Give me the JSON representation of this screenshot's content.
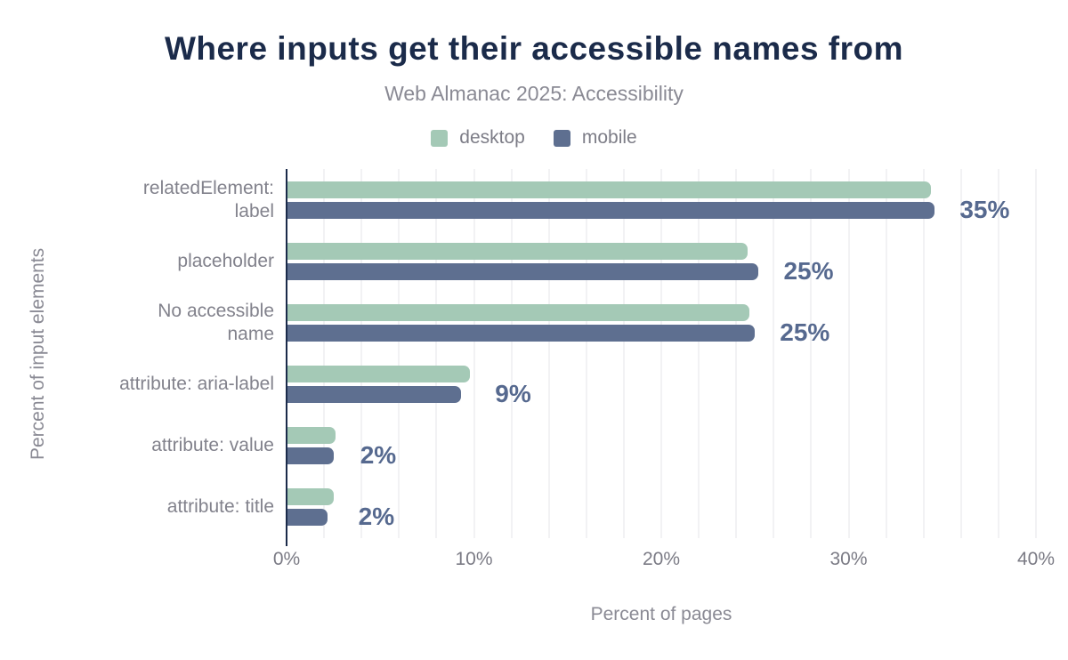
{
  "header": {
    "title": "Where inputs get their accessible names from",
    "subtitle": "Web Almanac 2025: Accessibility"
  },
  "colors": {
    "background": "#ffffff",
    "title_text": "#1b2b4a",
    "axis_line": "#1b2b4a",
    "value_label_text": "#56698f",
    "muted_text": "#8a8a94",
    "gridline": "#f2f2f4",
    "desktop_series": "#a4c9b6",
    "mobile_series": "#5e6f90"
  },
  "chart_data": {
    "type": "bar",
    "orientation": "horizontal",
    "title": "Where inputs get their accessible names from",
    "subtitle": "Web Almanac 2025: Accessibility",
    "categories": [
      "relatedElement:\nlabel",
      "placeholder",
      "No accessible\nname",
      "attribute: aria-label",
      "attribute: value",
      "attribute: title"
    ],
    "series": [
      {
        "name": "desktop",
        "color": "#a4c9b6",
        "values": [
          34.4,
          24.6,
          24.7,
          9.8,
          2.6,
          2.5
        ]
      },
      {
        "name": "mobile",
        "color": "#5e6f90",
        "values": [
          34.6,
          25.2,
          25.0,
          9.3,
          2.5,
          2.2
        ]
      }
    ],
    "value_labels": [
      "35%",
      "25%",
      "25%",
      "9%",
      "2%",
      "2%"
    ],
    "xlabel": "Percent of pages",
    "ylabel": "Percent of input elements",
    "xlim": [
      0,
      40
    ],
    "xticks": [
      "0%",
      "10%",
      "20%",
      "30%",
      "40%"
    ],
    "grid": "vertical gridlines every 2%",
    "legend_position": "top-center"
  }
}
